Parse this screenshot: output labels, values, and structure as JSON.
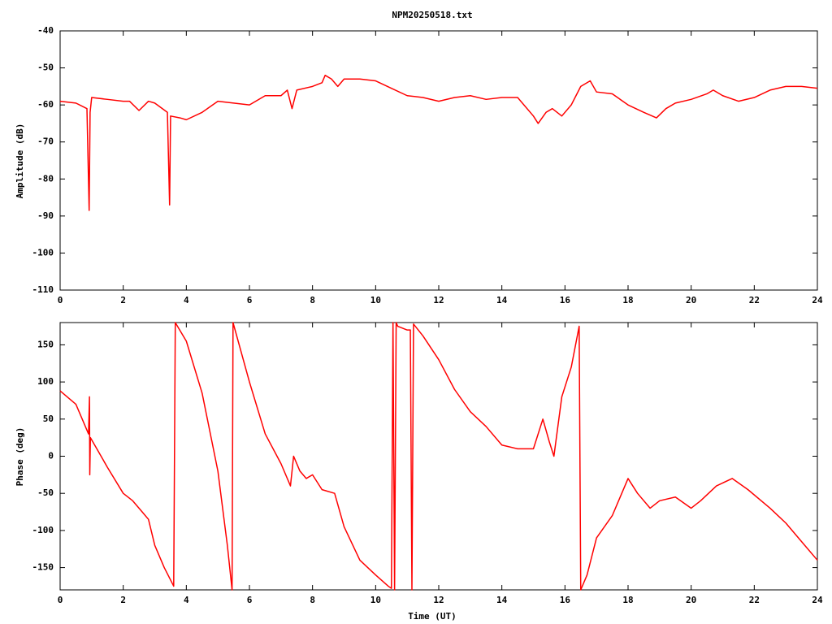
{
  "chart_data": [
    {
      "type": "line",
      "title": "NPM20250518.txt",
      "y_label": "Amplitude (dB)",
      "color": "#ff0000",
      "xlim": [
        0,
        24
      ],
      "xticks": [
        0,
        2,
        4,
        6,
        8,
        10,
        12,
        14,
        16,
        18,
        20,
        22,
        24
      ],
      "ylim": [
        -110,
        -40
      ],
      "yticks": [
        -110,
        -100,
        -90,
        -80,
        -70,
        -60,
        -50,
        -40
      ],
      "x": [
        0,
        0.5,
        0.85,
        0.92,
        0.95,
        1.0,
        1.5,
        2.0,
        2.2,
        2.5,
        2.8,
        3.0,
        3.4,
        3.47,
        3.5,
        3.8,
        4.0,
        4.5,
        5.0,
        5.5,
        6.0,
        6.5,
        7.0,
        7.2,
        7.35,
        7.5,
        8.0,
        8.3,
        8.4,
        8.6,
        8.8,
        9.0,
        9.5,
        10.0,
        10.5,
        11.0,
        11.5,
        12.0,
        12.5,
        13.0,
        13.5,
        14.0,
        14.5,
        15.0,
        15.15,
        15.4,
        15.6,
        15.9,
        16.2,
        16.5,
        16.8,
        17.0,
        17.5,
        18.0,
        18.5,
        18.9,
        19.2,
        19.5,
        20.0,
        20.5,
        20.7,
        21.0,
        21.5,
        22.0,
        22.5,
        23.0,
        23.5,
        24.0
      ],
      "values": [
        -59,
        -59.5,
        -61,
        -88.5,
        -62,
        -58,
        -58.5,
        -59,
        -59,
        -61.5,
        -59,
        -59.5,
        -62,
        -87,
        -63,
        -63.5,
        -64,
        -62,
        -59,
        -59.5,
        -60,
        -57.5,
        -57.5,
        -56,
        -61,
        -56,
        -55,
        -54,
        -52,
        -53,
        -55,
        -53,
        -53,
        -53.5,
        -55.5,
        -57.5,
        -58,
        -59,
        -58,
        -57.5,
        -58.5,
        -58,
        -58,
        -63,
        -65,
        -62,
        -61,
        -63,
        -60,
        -55,
        -53.5,
        -56.5,
        -57,
        -60,
        -62,
        -63.5,
        -61,
        -59.5,
        -58.5,
        -57,
        -56,
        -57.5,
        -59,
        -58,
        -56,
        -55,
        -55,
        -55.5
      ]
    },
    {
      "type": "line",
      "x_label": "Time (UT)",
      "y_label": "Phase (deg)",
      "color": "#ff0000",
      "xlim": [
        0,
        24
      ],
      "xticks": [
        0,
        2,
        4,
        6,
        8,
        10,
        12,
        14,
        16,
        18,
        20,
        22,
        24
      ],
      "ylim": [
        -180,
        180
      ],
      "yticks": [
        -150,
        -100,
        -50,
        0,
        50,
        100,
        150
      ],
      "x": [
        0,
        0.5,
        0.9,
        0.93,
        0.94,
        0.96,
        1.5,
        2.0,
        2.3,
        2.6,
        2.8,
        3.0,
        3.3,
        3.6,
        3.65,
        4.0,
        4.5,
        5.0,
        5.3,
        5.45,
        5.48,
        6.0,
        6.5,
        7.0,
        7.3,
        7.4,
        7.6,
        7.8,
        8.0,
        8.3,
        8.7,
        9.0,
        9.5,
        10.0,
        10.4,
        10.5,
        10.55,
        10.6,
        10.65,
        10.7,
        11.0,
        11.1,
        11.15,
        11.2,
        11.5,
        12.0,
        12.5,
        13.0,
        13.5,
        14.0,
        14.5,
        15.0,
        15.3,
        15.5,
        15.65,
        15.9,
        16.2,
        16.45,
        16.5,
        16.7,
        17.0,
        17.5,
        18.0,
        18.3,
        18.7,
        19.0,
        19.5,
        20.0,
        20.3,
        20.8,
        21.3,
        21.8,
        22.5,
        23.0,
        23.5,
        24.0
      ],
      "values": [
        88,
        70,
        30,
        80,
        -25,
        25,
        -15,
        -50,
        -60,
        -75,
        -85,
        -120,
        -150,
        -175,
        180,
        155,
        85,
        -20,
        -120,
        -180,
        180,
        100,
        30,
        -10,
        -40,
        0,
        -20,
        -30,
        -25,
        -45,
        -50,
        -95,
        -140,
        -160,
        -175,
        -178,
        180,
        -180,
        180,
        175,
        170,
        170,
        -180,
        178,
        162,
        130,
        90,
        60,
        40,
        15,
        10,
        10,
        50,
        20,
        0,
        80,
        120,
        175,
        -180,
        -160,
        -110,
        -80,
        -30,
        -50,
        -70,
        -60,
        -55,
        -70,
        -60,
        -40,
        -30,
        -45,
        -70,
        -90,
        -115,
        -140
      ]
    }
  ]
}
